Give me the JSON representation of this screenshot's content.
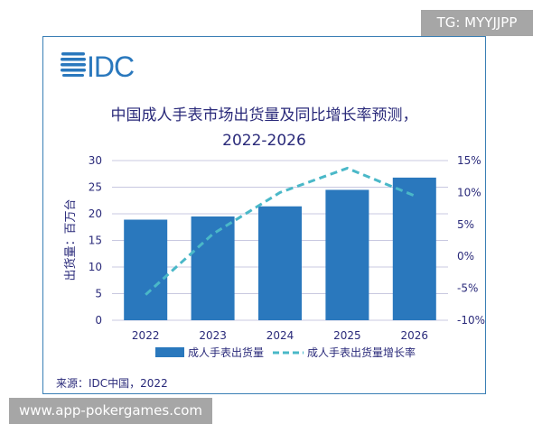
{
  "watermark_top": "TG: MYYJJPP",
  "watermark_bottom": "www.app-pokergames.com",
  "logo": "IDC",
  "source": "来源：IDC中国，2022",
  "chart_data": {
    "type": "bar+line",
    "title_line1": "中国成人手表市场出货量及同比增长率预测，",
    "title_line2": "2022-2026",
    "ylabel": "出货量：百万台",
    "categories": [
      "2022",
      "2023",
      "2024",
      "2025",
      "2026"
    ],
    "ylim": [
      0,
      30
    ],
    "yticks": [
      "0",
      "5",
      "10",
      "15",
      "20",
      "25",
      "30"
    ],
    "y2lim": [
      -10,
      15
    ],
    "y2ticks": [
      "-10%",
      "-5%",
      "0%",
      "5%",
      "10%",
      "15%"
    ],
    "grid": true,
    "legend_position": "bottom",
    "series": [
      {
        "name": "成人手表出货量",
        "type": "bar",
        "axis": "left",
        "color": "#2a78bd",
        "values": [
          18.9,
          19.5,
          21.4,
          24.5,
          26.8
        ]
      },
      {
        "name": "成人手表出货量增长率",
        "type": "line",
        "style": "dashed",
        "axis": "right",
        "color": "#4ab8c8",
        "values": [
          -6.0,
          3.5,
          10.0,
          13.8,
          9.5
        ]
      }
    ]
  }
}
